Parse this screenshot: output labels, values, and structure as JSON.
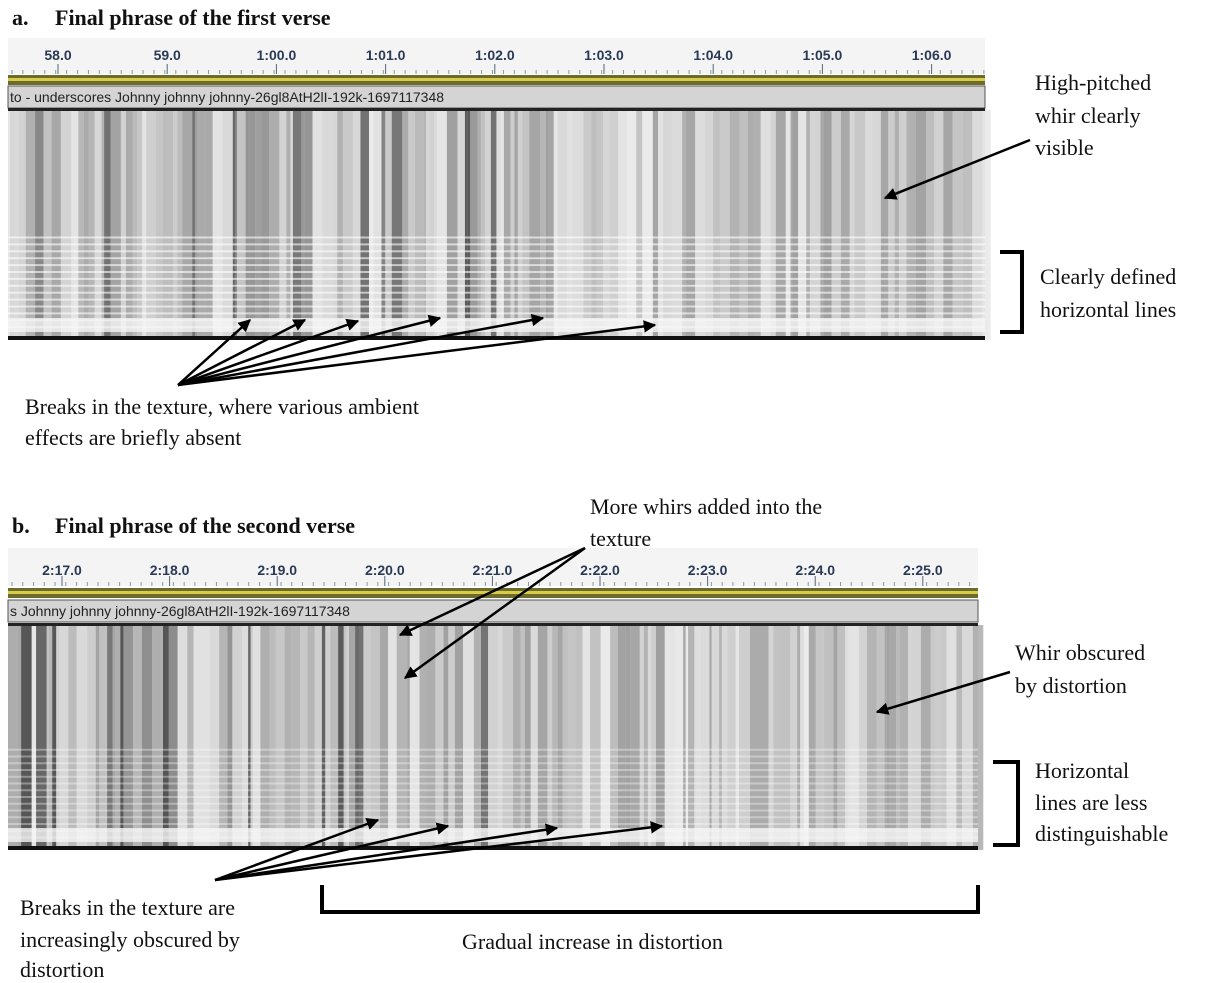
{
  "panels": [
    {
      "label": "a.",
      "title": "Final phrase of the first verse",
      "ticks": [
        "58.0",
        "59.0",
        "1:00.0",
        "1:01.0",
        "1:02.0",
        "1:03.0",
        "1:04.0",
        "1:05.0",
        "1:06.0"
      ],
      "track_name": "to - underscores Johnny johnny johnny-26gl8AtH2lI-192k-1697117348",
      "annotations": [
        {
          "lines": [
            "High-pitched",
            "whir clearly",
            "visible"
          ]
        },
        {
          "lines": [
            "Clearly defined",
            "horizontal lines"
          ]
        },
        {
          "lines": [
            "Breaks in the texture, where various ambient",
            "effects are briefly absent"
          ]
        }
      ]
    },
    {
      "label": "b.",
      "title": "Final phrase of the second verse",
      "ticks": [
        "2:17.0",
        "2:18.0",
        "2:19.0",
        "2:20.0",
        "2:21.0",
        "2:22.0",
        "2:23.0",
        "2:24.0",
        "2:25.0"
      ],
      "track_name": "s Johnny johnny johnny-26gl8AtH2lI-192k-1697117348",
      "annotations": [
        {
          "lines": [
            "More whirs added into the",
            "texture"
          ]
        },
        {
          "lines": [
            "Whir obscured",
            "by distortion"
          ]
        },
        {
          "lines": [
            "Horizontal",
            "lines are less",
            "distinguishable"
          ]
        },
        {
          "lines": [
            "Breaks in the texture are",
            "increasingly obscured by",
            "distortion"
          ]
        },
        {
          "lines": [
            "Gradual increase in distortion"
          ]
        }
      ]
    }
  ]
}
